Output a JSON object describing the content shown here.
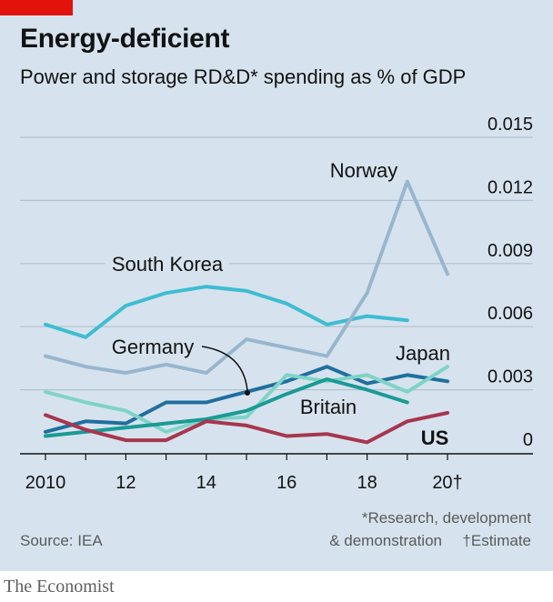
{
  "header": {
    "title": "Energy-deficient",
    "subtitle": "Power and storage RD&D* spending as % of GDP"
  },
  "footer": {
    "note1": "*Research, development",
    "note2": "& demonstration",
    "note3": "†Estimate",
    "source": "Source: IEA",
    "brand": "The Economist"
  },
  "colors": {
    "background": "#d6e3ee",
    "grid": "#b3c2cf",
    "axis": "#121212",
    "brand_red": "#e3120b"
  },
  "chart_data": {
    "type": "line",
    "title": "Energy-deficient",
    "subtitle": "Power and storage RD&D* spending as % of GDP",
    "x": [
      2010,
      2011,
      2012,
      2013,
      2014,
      2015,
      2016,
      2017,
      2018,
      2019,
      2020
    ],
    "x_tick_labels": [
      {
        "x": 2010,
        "label": "2010"
      },
      {
        "x": 2012,
        "label": "12"
      },
      {
        "x": 2014,
        "label": "14"
      },
      {
        "x": 2016,
        "label": "16"
      },
      {
        "x": 2018,
        "label": "18"
      },
      {
        "x": 2020,
        "label": "20†"
      }
    ],
    "y_ticks": [
      {
        "value": 0,
        "label": "0"
      },
      {
        "value": 0.003,
        "label": "0.003"
      },
      {
        "value": 0.006,
        "label": "0.006"
      },
      {
        "value": 0.009,
        "label": "0.009"
      },
      {
        "value": 0.012,
        "label": "0.012"
      },
      {
        "value": 0.015,
        "label": "0.015"
      }
    ],
    "ylim": [
      0,
      0.015
    ],
    "xlim": [
      2010,
      2020
    ],
    "grid": true,
    "series": [
      {
        "name": "South Korea",
        "color": "#3ebcd2",
        "x": [
          2010,
          2011,
          2012,
          2013,
          2014,
          2015,
          2016,
          2017,
          2018,
          2019
        ],
        "values": [
          0.0061,
          0.0055,
          0.007,
          0.0076,
          0.0079,
          0.0077,
          0.0071,
          0.0061,
          0.0065,
          0.0063
        ]
      },
      {
        "name": "Norway",
        "color": "#98b6ce",
        "x": [
          2010,
          2011,
          2012,
          2013,
          2014,
          2015,
          2016,
          2017,
          2018,
          2019,
          2020
        ],
        "values": [
          0.0046,
          0.0041,
          0.0038,
          0.0042,
          0.0038,
          0.0054,
          0.005,
          0.0046,
          0.0076,
          0.0129,
          0.0085
        ]
      },
      {
        "name": "Japan",
        "color": "#1f6f9f",
        "x": [
          2010,
          2011,
          2012,
          2013,
          2014,
          2015,
          2016,
          2017,
          2018,
          2019,
          2020
        ],
        "values": [
          0.001,
          0.0015,
          0.0014,
          0.0024,
          0.0024,
          0.0029,
          0.0034,
          0.0041,
          0.0033,
          0.0037,
          0.0034
        ]
      },
      {
        "name": "Germany",
        "color": "#7fd3c7",
        "x": [
          2010,
          2011,
          2012,
          2013,
          2014,
          2015,
          2016,
          2017,
          2018,
          2019,
          2020
        ],
        "values": [
          0.0029,
          0.0024,
          0.002,
          0.001,
          0.0016,
          0.0017,
          0.0037,
          0.0034,
          0.0037,
          0.0029,
          0.0041
        ]
      },
      {
        "name": "Britain",
        "color": "#1b9a96",
        "x": [
          2010,
          2011,
          2012,
          2013,
          2014,
          2015,
          2016,
          2017,
          2018,
          2019
        ],
        "values": [
          0.0008,
          0.001,
          0.0012,
          0.0014,
          0.0016,
          0.002,
          0.0028,
          0.0035,
          0.003,
          0.0024
        ]
      },
      {
        "name": "US",
        "color": "#a7364e",
        "x": [
          2010,
          2011,
          2012,
          2013,
          2014,
          2015,
          2016,
          2017,
          2018,
          2019,
          2020
        ],
        "values": [
          0.0018,
          0.0011,
          0.0006,
          0.0006,
          0.0015,
          0.0013,
          0.0008,
          0.0009,
          0.0005,
          0.0015,
          0.0019
        ]
      }
    ],
    "annotations": [
      {
        "text": "Norway",
        "series": "Norway"
      },
      {
        "text": "South Korea",
        "series": "South Korea"
      },
      {
        "text": "Germany",
        "series": "Germany"
      },
      {
        "text": "Japan",
        "series": "Japan"
      },
      {
        "text": "Britain",
        "series": "Britain"
      },
      {
        "text": "US",
        "series": "US"
      }
    ]
  }
}
